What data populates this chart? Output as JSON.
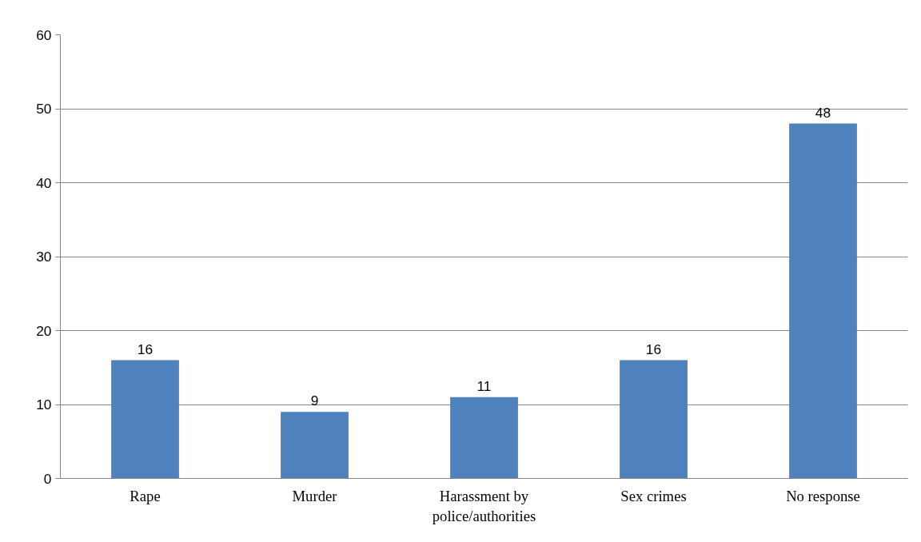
{
  "chart_data": {
    "type": "bar",
    "categories": [
      "Rape",
      "Murder",
      "Harassment by police/authorities",
      "Sex crimes",
      "No response"
    ],
    "values": [
      16,
      9,
      11,
      16,
      48
    ],
    "color": "#4f81bd",
    "ylim": [
      0,
      60
    ],
    "yticks": [
      0,
      10,
      20,
      30,
      40,
      50,
      60
    ],
    "grid": "y",
    "data_labels": true
  }
}
